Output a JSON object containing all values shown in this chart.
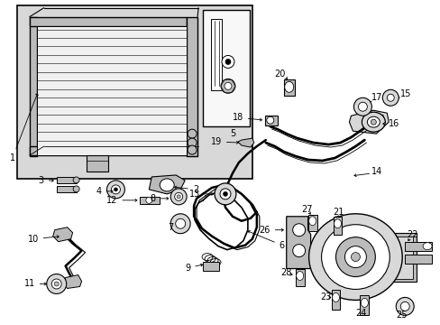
{
  "bg_color": "#ffffff",
  "fig_width": 4.89,
  "fig_height": 3.6,
  "dpi": 100,
  "outline_color": "#000000",
  "gray_light": "#d8d8d8",
  "gray_mid": "#bbbbbb",
  "gray_box": "#e0e0e0",
  "label_fontsize": 7.0
}
